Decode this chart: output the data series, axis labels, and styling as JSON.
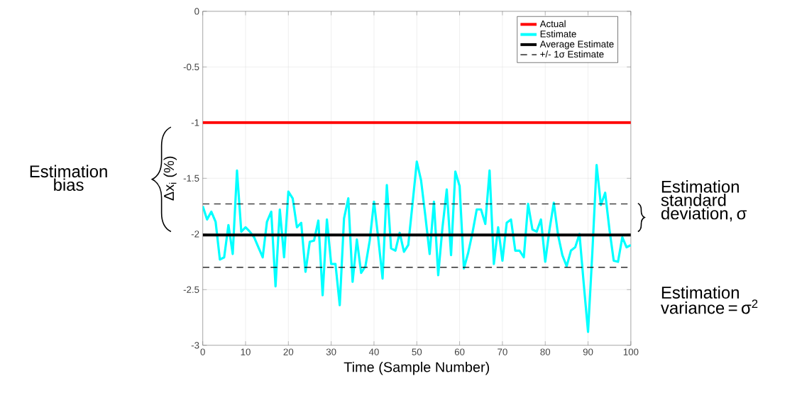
{
  "chart_data": {
    "type": "line",
    "xlabel": "Time (Sample Number)",
    "ylabel": "Δx$_{i}$ (%)",
    "xlim": [
      0,
      100
    ],
    "ylim": [
      -3,
      0
    ],
    "xticks": [
      0,
      10,
      20,
      30,
      40,
      50,
      60,
      70,
      80,
      90,
      100
    ],
    "yticks": [
      -3,
      -2.5,
      -2,
      -1.5,
      -1,
      -0.5,
      0
    ],
    "grid": true,
    "legend": "top right",
    "series": [
      {
        "name": "Actual",
        "color": "#ff0000",
        "x": [
          0,
          100
        ],
        "values": [
          -1,
          -1
        ]
      },
      {
        "name": "Estimate",
        "color": "#00ffff",
        "x": [
          0,
          1,
          2,
          3,
          4,
          5,
          6,
          7,
          8,
          9,
          10,
          11,
          12,
          13,
          14,
          15,
          16,
          17,
          18,
          19,
          20,
          21,
          22,
          23,
          24,
          25,
          26,
          27,
          28,
          29,
          30,
          31,
          32,
          33,
          34,
          35,
          36,
          37,
          38,
          39,
          40,
          41,
          42,
          43,
          44,
          45,
          46,
          47,
          48,
          49,
          50,
          51,
          52,
          53,
          54,
          55,
          56,
          57,
          58,
          59,
          60,
          61,
          62,
          63,
          64,
          65,
          66,
          67,
          68,
          69,
          70,
          71,
          72,
          73,
          74,
          75,
          76,
          77,
          78,
          79,
          80,
          81,
          82,
          83,
          84,
          85,
          86,
          87,
          88,
          89,
          90,
          91,
          92,
          93,
          94,
          95,
          96,
          97,
          98,
          99,
          100
        ],
        "values": [
          -1.75,
          -1.87,
          -1.8,
          -1.89,
          -2.23,
          -2.21,
          -1.92,
          -2.18,
          -1.43,
          -1.98,
          -1.94,
          -1.98,
          -2.03,
          -2.12,
          -2.21,
          -1.89,
          -1.8,
          -2.47,
          -1.78,
          -2.21,
          -1.62,
          -1.68,
          -1.94,
          -1.9,
          -2.34,
          -2.07,
          -2.06,
          -1.88,
          -2.55,
          -1.87,
          -2.27,
          -2.27,
          -2.64,
          -1.86,
          -1.68,
          -2.43,
          -2.05,
          -2.35,
          -2.29,
          -2.06,
          -1.71,
          -2.04,
          -2.4,
          -1.56,
          -2.13,
          -2.15,
          -1.99,
          -2.16,
          -2.1,
          -1.73,
          -1.35,
          -1.52,
          -1.84,
          -2.18,
          -1.71,
          -2.37,
          -1.94,
          -1.6,
          -2.19,
          -1.44,
          -1.57,
          -2.31,
          -2.17,
          -1.99,
          -1.78,
          -1.78,
          -1.91,
          -1.43,
          -2.27,
          -1.94,
          -2.24,
          -1.9,
          -1.87,
          -2.15,
          -2.15,
          -2.21,
          -1.73,
          -1.96,
          -1.98,
          -1.87,
          -2.25,
          -1.96,
          -1.72,
          -2.01,
          -2.19,
          -2.29,
          -2.15,
          -2.12,
          -2.0,
          -2.45,
          -2.88,
          -2.17,
          -1.38,
          -1.74,
          -1.63,
          -1.96,
          -2.24,
          -2.25,
          -2.03,
          -2.12,
          -2.1
        ]
      },
      {
        "name": "Average Estimate",
        "color": "#000000",
        "x": [
          0,
          100
        ],
        "values": [
          -2.01,
          -2.01
        ]
      },
      {
        "name": "+/- 1σ Estimate",
        "color": "#000000",
        "line_style": "dashed",
        "x": [
          0,
          100
        ],
        "values": [
          -1.73,
          -1.73
        ]
      },
      {
        "color": "#000000",
        "line_style": "dashed",
        "x": [
          0,
          100
        ],
        "values": [
          -2.3,
          -2.3
        ]
      }
    ],
    "annotations": [
      "Estimation bias",
      "Estimation standard deviation, σ",
      "Estimation variance = σ$^{2}$"
    ]
  }
}
